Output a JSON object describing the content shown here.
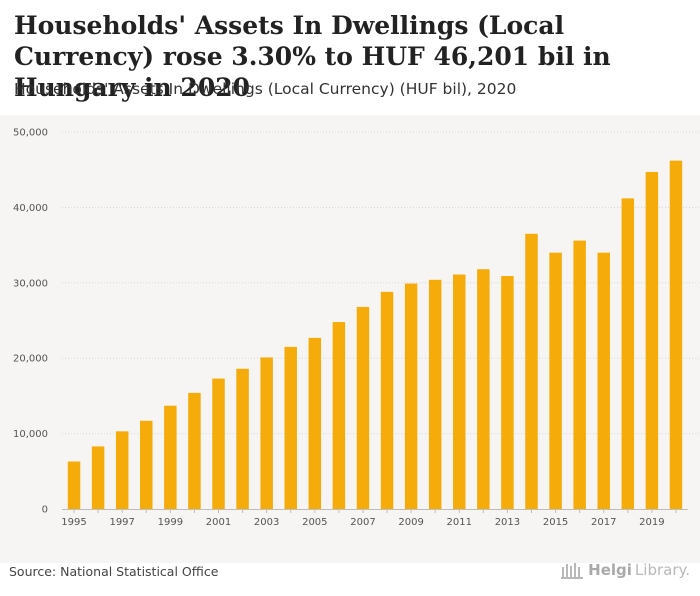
{
  "header": {
    "title": "Households' Assets In Dwellings (Local Currency) rose 3.30% to HUF 46,201 bil in Hungary in 2020",
    "subtitle": "Households' Assets In Dwellings (Local Currency) (HUF bil), 2020"
  },
  "footer": {
    "source": "Source: National Statistical Office",
    "brand_bold": "Helgi",
    "brand_rest": "Library."
  },
  "colors": {
    "bar": "#f5ac0b",
    "plot_background": "#f6f5f3",
    "grid": "#d6d6d6",
    "axis_text": "#555555"
  },
  "chart_data": {
    "type": "bar",
    "title": "Households' Assets In Dwellings (Local Currency) rose 3.30% to HUF 46,201 bil in Hungary in 2020",
    "subtitle": "Households' Assets In Dwellings (Local Currency) (HUF bil), 2020",
    "xlabel": "",
    "ylabel": "",
    "categories": [
      "1995",
      "1996",
      "1997",
      "1998",
      "1999",
      "2000",
      "2001",
      "2002",
      "2003",
      "2004",
      "2005",
      "2006",
      "2007",
      "2008",
      "2009",
      "2010",
      "2011",
      "2012",
      "2013",
      "2014",
      "2015",
      "2016",
      "2017",
      "2018",
      "2019",
      "2020"
    ],
    "values": [
      6300,
      8300,
      10300,
      11700,
      13700,
      15400,
      17300,
      18600,
      20100,
      21500,
      22700,
      24800,
      26800,
      28800,
      29900,
      30400,
      31100,
      31800,
      30900,
      36500,
      34000,
      35600,
      34000,
      41200,
      44700,
      46201
    ],
    "x_tick_labels": [
      "1995",
      "1997",
      "1999",
      "2001",
      "2003",
      "2005",
      "2007",
      "2009",
      "2011",
      "2013",
      "2015",
      "2017",
      "2019"
    ],
    "y_ticks": [
      0,
      10000,
      20000,
      30000,
      40000,
      50000
    ],
    "y_tick_labels": [
      "0",
      "10,000",
      "20,000",
      "30,000",
      "40,000",
      "50,000"
    ],
    "ylim": [
      0,
      50000
    ],
    "grid": true,
    "legend": "none"
  }
}
